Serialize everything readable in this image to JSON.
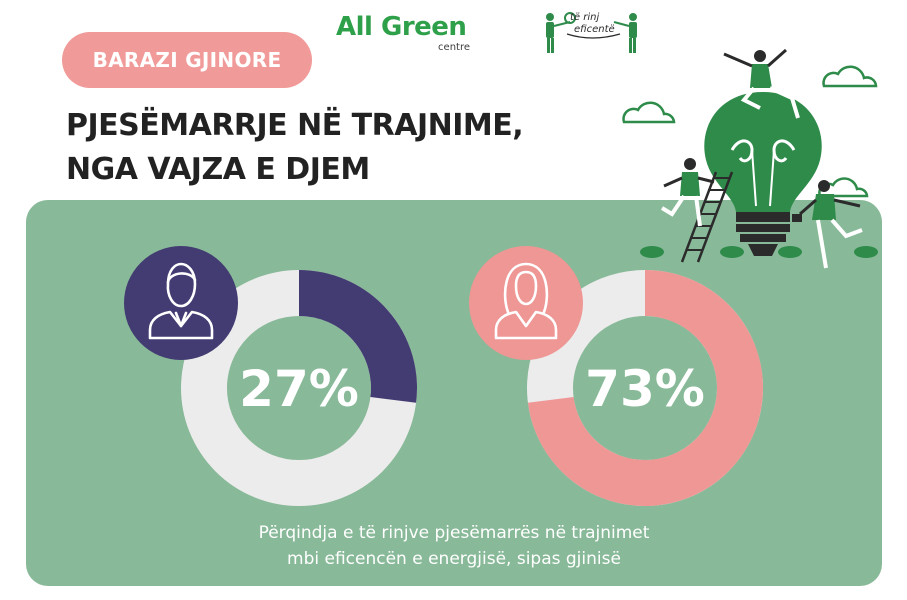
{
  "badge": "BARAZI GJINORE",
  "logos": {
    "allgreen_main": "All Green",
    "allgreen_sub": "centre",
    "rinj_line1": "të rinj",
    "rinj_line2": "eficentë"
  },
  "title_line1": "PJESËMARRJE NË TRAJNIME,",
  "title_line2": "NGA VAJZA E DJEM",
  "caption_line1": "Përqindja e të rinjve pjesëmarrës në trajnimet",
  "caption_line2": "mbi eficencën e energjisë, sipas gjinisë",
  "colors": {
    "panel": "#88b998",
    "male": "#433c72",
    "female": "#ee9795",
    "track": "#ececec",
    "badge": "#f09b99",
    "brand_green": "#2fa04a"
  },
  "icons": [
    "male-avatar-icon",
    "female-avatar-icon",
    "lightbulb-illustration",
    "cloud-icon"
  ],
  "chart_data": [
    {
      "type": "pie",
      "subtype": "donut",
      "group": "male",
      "icon": "male-avatar-icon",
      "value": 27,
      "total": 100,
      "label": "27%"
    },
    {
      "type": "pie",
      "subtype": "donut",
      "group": "female",
      "icon": "female-avatar-icon",
      "value": 73,
      "total": 100,
      "label": "73%"
    }
  ]
}
